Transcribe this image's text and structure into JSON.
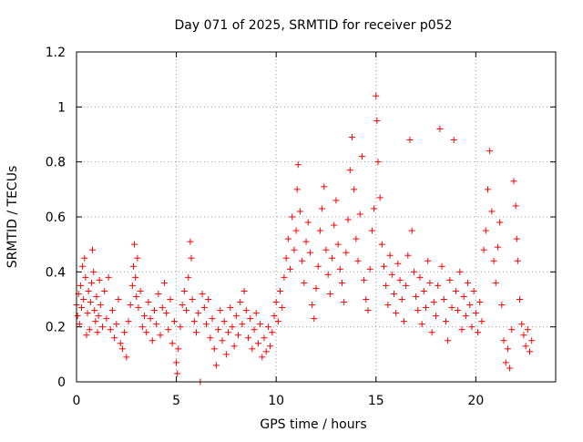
{
  "chart_data": {
    "type": "scatter",
    "title": "Day 071 of 2025, SRMTID for receiver p052",
    "xlabel": "GPS time / hours",
    "ylabel": "SRMTID / TECUs",
    "xlim": [
      0,
      24
    ],
    "ylim": [
      0,
      1.2
    ],
    "xticks": [
      0,
      5,
      10,
      15,
      20
    ],
    "xtick_labels": [
      "0",
      "5",
      "10",
      "15",
      "20"
    ],
    "yticks": [
      0,
      0.2,
      0.4,
      0.6,
      0.8,
      1,
      1.2
    ],
    "ytick_labels": [
      "0",
      "0.2",
      "0.4",
      "0.6",
      "0.8",
      "1",
      "1.2"
    ],
    "grid": true,
    "marker": "+",
    "color": "#ff0000",
    "points": [
      [
        0.0,
        0.28
      ],
      [
        0.05,
        0.24
      ],
      [
        0.1,
        0.32
      ],
      [
        0.15,
        0.21
      ],
      [
        0.2,
        0.35
      ],
      [
        0.25,
        0.27
      ],
      [
        0.3,
        0.42
      ],
      [
        0.35,
        0.3
      ],
      [
        0.4,
        0.45
      ],
      [
        0.45,
        0.38
      ],
      [
        0.5,
        0.17
      ],
      [
        0.55,
        0.25
      ],
      [
        0.6,
        0.33
      ],
      [
        0.65,
        0.19
      ],
      [
        0.7,
        0.29
      ],
      [
        0.75,
        0.36
      ],
      [
        0.8,
        0.48
      ],
      [
        0.85,
        0.4
      ],
      [
        0.9,
        0.26
      ],
      [
        0.95,
        0.22
      ],
      [
        1.0,
        0.31
      ],
      [
        1.05,
        0.18
      ],
      [
        1.1,
        0.24
      ],
      [
        1.15,
        0.37
      ],
      [
        1.2,
        0.28
      ],
      [
        1.3,
        0.2
      ],
      [
        1.4,
        0.33
      ],
      [
        1.5,
        0.23
      ],
      [
        1.6,
        0.38
      ],
      [
        1.7,
        0.19
      ],
      [
        1.8,
        0.26
      ],
      [
        1.9,
        0.16
      ],
      [
        2.0,
        0.21
      ],
      [
        2.1,
        0.3
      ],
      [
        2.2,
        0.14
      ],
      [
        2.3,
        0.12
      ],
      [
        2.4,
        0.18
      ],
      [
        2.5,
        0.09
      ],
      [
        2.6,
        0.22
      ],
      [
        2.7,
        0.28
      ],
      [
        2.8,
        0.35
      ],
      [
        2.85,
        0.42
      ],
      [
        2.9,
        0.5
      ],
      [
        2.95,
        0.38
      ],
      [
        3.0,
        0.31
      ],
      [
        3.05,
        0.45
      ],
      [
        3.1,
        0.27
      ],
      [
        3.2,
        0.33
      ],
      [
        3.3,
        0.2
      ],
      [
        3.4,
        0.24
      ],
      [
        3.5,
        0.18
      ],
      [
        3.6,
        0.29
      ],
      [
        3.7,
        0.23
      ],
      [
        3.8,
        0.15
      ],
      [
        3.9,
        0.26
      ],
      [
        4.0,
        0.21
      ],
      [
        4.1,
        0.32
      ],
      [
        4.2,
        0.17
      ],
      [
        4.3,
        0.27
      ],
      [
        4.4,
        0.36
      ],
      [
        4.5,
        0.25
      ],
      [
        4.6,
        0.19
      ],
      [
        4.7,
        0.3
      ],
      [
        4.8,
        0.14
      ],
      [
        4.9,
        0.22
      ],
      [
        5.0,
        0.07
      ],
      [
        5.05,
        0.03
      ],
      [
        5.1,
        0.12
      ],
      [
        5.2,
        0.2
      ],
      [
        5.3,
        0.28
      ],
      [
        5.4,
        0.33
      ],
      [
        5.5,
        0.26
      ],
      [
        5.6,
        0.38
      ],
      [
        5.7,
        0.51
      ],
      [
        5.75,
        0.45
      ],
      [
        5.8,
        0.3
      ],
      [
        5.9,
        0.22
      ],
      [
        6.0,
        0.18
      ],
      [
        6.1,
        0.25
      ],
      [
        6.2,
        0.0
      ],
      [
        6.3,
        0.32
      ],
      [
        6.4,
        0.27
      ],
      [
        6.5,
        0.21
      ],
      [
        6.6,
        0.3
      ],
      [
        6.7,
        0.16
      ],
      [
        6.8,
        0.23
      ],
      [
        6.9,
        0.12
      ],
      [
        7.0,
        0.06
      ],
      [
        7.1,
        0.19
      ],
      [
        7.2,
        0.26
      ],
      [
        7.3,
        0.15
      ],
      [
        7.4,
        0.22
      ],
      [
        7.5,
        0.1
      ],
      [
        7.6,
        0.18
      ],
      [
        7.7,
        0.27
      ],
      [
        7.8,
        0.2
      ],
      [
        7.9,
        0.13
      ],
      [
        8.0,
        0.24
      ],
      [
        8.1,
        0.17
      ],
      [
        8.2,
        0.29
      ],
      [
        8.3,
        0.21
      ],
      [
        8.4,
        0.33
      ],
      [
        8.5,
        0.26
      ],
      [
        8.6,
        0.16
      ],
      [
        8.7,
        0.23
      ],
      [
        8.8,
        0.12
      ],
      [
        8.9,
        0.19
      ],
      [
        9.0,
        0.25
      ],
      [
        9.1,
        0.14
      ],
      [
        9.2,
        0.21
      ],
      [
        9.3,
        0.09
      ],
      [
        9.4,
        0.16
      ],
      [
        9.5,
        0.11
      ],
      [
        9.6,
        0.2
      ],
      [
        9.7,
        0.13
      ],
      [
        9.8,
        0.18
      ],
      [
        9.9,
        0.24
      ],
      [
        10.0,
        0.29
      ],
      [
        10.1,
        0.22
      ],
      [
        10.2,
        0.33
      ],
      [
        10.3,
        0.27
      ],
      [
        10.4,
        0.38
      ],
      [
        10.5,
        0.45
      ],
      [
        10.6,
        0.52
      ],
      [
        10.7,
        0.41
      ],
      [
        10.8,
        0.6
      ],
      [
        10.9,
        0.48
      ],
      [
        11.0,
        0.55
      ],
      [
        11.05,
        0.7
      ],
      [
        11.1,
        0.79
      ],
      [
        11.2,
        0.62
      ],
      [
        11.3,
        0.44
      ],
      [
        11.4,
        0.36
      ],
      [
        11.5,
        0.51
      ],
      [
        11.6,
        0.58
      ],
      [
        11.7,
        0.47
      ],
      [
        11.8,
        0.28
      ],
      [
        11.9,
        0.23
      ],
      [
        12.0,
        0.34
      ],
      [
        12.1,
        0.42
      ],
      [
        12.2,
        0.55
      ],
      [
        12.3,
        0.63
      ],
      [
        12.4,
        0.71
      ],
      [
        12.5,
        0.48
      ],
      [
        12.6,
        0.39
      ],
      [
        12.7,
        0.32
      ],
      [
        12.8,
        0.45
      ],
      [
        12.9,
        0.57
      ],
      [
        13.0,
        0.66
      ],
      [
        13.1,
        0.5
      ],
      [
        13.2,
        0.41
      ],
      [
        13.3,
        0.36
      ],
      [
        13.4,
        0.29
      ],
      [
        13.5,
        0.47
      ],
      [
        13.6,
        0.59
      ],
      [
        13.7,
        0.77
      ],
      [
        13.8,
        0.89
      ],
      [
        13.9,
        0.7
      ],
      [
        14.0,
        0.52
      ],
      [
        14.1,
        0.44
      ],
      [
        14.2,
        0.61
      ],
      [
        14.3,
        0.82
      ],
      [
        14.4,
        0.37
      ],
      [
        14.5,
        0.3
      ],
      [
        14.6,
        0.26
      ],
      [
        14.7,
        0.41
      ],
      [
        14.8,
        0.55
      ],
      [
        14.9,
        0.63
      ],
      [
        15.0,
        1.04
      ],
      [
        15.05,
        0.95
      ],
      [
        15.1,
        0.8
      ],
      [
        15.2,
        0.67
      ],
      [
        15.3,
        0.5
      ],
      [
        15.4,
        0.42
      ],
      [
        15.5,
        0.35
      ],
      [
        15.6,
        0.28
      ],
      [
        15.7,
        0.46
      ],
      [
        15.8,
        0.39
      ],
      [
        15.9,
        0.32
      ],
      [
        16.0,
        0.25
      ],
      [
        16.1,
        0.43
      ],
      [
        16.2,
        0.37
      ],
      [
        16.3,
        0.3
      ],
      [
        16.4,
        0.22
      ],
      [
        16.5,
        0.35
      ],
      [
        16.6,
        0.46
      ],
      [
        16.7,
        0.88
      ],
      [
        16.8,
        0.55
      ],
      [
        16.9,
        0.4
      ],
      [
        17.0,
        0.31
      ],
      [
        17.1,
        0.26
      ],
      [
        17.2,
        0.38
      ],
      [
        17.3,
        0.21
      ],
      [
        17.4,
        0.33
      ],
      [
        17.5,
        0.27
      ],
      [
        17.6,
        0.44
      ],
      [
        17.7,
        0.36
      ],
      [
        17.8,
        0.18
      ],
      [
        17.9,
        0.29
      ],
      [
        18.0,
        0.24
      ],
      [
        18.1,
        0.35
      ],
      [
        18.2,
        0.92
      ],
      [
        18.3,
        0.42
      ],
      [
        18.4,
        0.3
      ],
      [
        18.5,
        0.22
      ],
      [
        18.6,
        0.15
      ],
      [
        18.7,
        0.37
      ],
      [
        18.8,
        0.27
      ],
      [
        18.9,
        0.88
      ],
      [
        19.0,
        0.33
      ],
      [
        19.1,
        0.26
      ],
      [
        19.2,
        0.4
      ],
      [
        19.3,
        0.19
      ],
      [
        19.4,
        0.31
      ],
      [
        19.5,
        0.24
      ],
      [
        19.6,
        0.36
      ],
      [
        19.7,
        0.28
      ],
      [
        19.8,
        0.2
      ],
      [
        19.9,
        0.33
      ],
      [
        20.0,
        0.25
      ],
      [
        20.1,
        0.18
      ],
      [
        20.2,
        0.29
      ],
      [
        20.3,
        0.22
      ],
      [
        20.4,
        0.48
      ],
      [
        20.5,
        0.55
      ],
      [
        20.6,
        0.7
      ],
      [
        20.7,
        0.84
      ],
      [
        20.8,
        0.62
      ],
      [
        20.9,
        0.44
      ],
      [
        21.0,
        0.36
      ],
      [
        21.1,
        0.49
      ],
      [
        21.2,
        0.58
      ],
      [
        21.3,
        0.28
      ],
      [
        21.4,
        0.15
      ],
      [
        21.5,
        0.07
      ],
      [
        21.6,
        0.12
      ],
      [
        21.7,
        0.05
      ],
      [
        21.8,
        0.19
      ],
      [
        21.9,
        0.73
      ],
      [
        22.0,
        0.64
      ],
      [
        22.05,
        0.52
      ],
      [
        22.1,
        0.44
      ],
      [
        22.2,
        0.3
      ],
      [
        22.3,
        0.21
      ],
      [
        22.4,
        0.17
      ],
      [
        22.5,
        0.13
      ],
      [
        22.6,
        0.19
      ],
      [
        22.7,
        0.11
      ],
      [
        22.8,
        0.15
      ]
    ]
  }
}
